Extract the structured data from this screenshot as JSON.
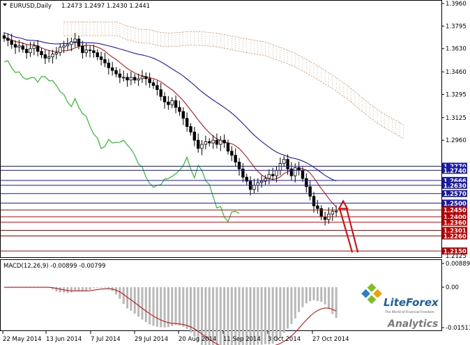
{
  "header": {
    "symbol_timeframe": "EURUSD,Daily",
    "ohlc": "1.2473 1.2497 1.2430 1.2441"
  },
  "price_axis": {
    "ticks": [
      "1.3960",
      "1.3795",
      "1.3630",
      "1.3460",
      "1.3295",
      "1.3125",
      "1.2960"
    ],
    "low_tick": "1.2125"
  },
  "levels": [
    {
      "label": "1.2770",
      "color": "#1a1aa8",
      "kind": "resistance"
    },
    {
      "label": "1.2740",
      "color": "#1a1aa8",
      "kind": "resistance"
    },
    {
      "label": "1.2666",
      "color": "#1a1aa8",
      "kind": "resistance"
    },
    {
      "label": "1.2630",
      "color": "#1a1aa8",
      "kind": "resistance"
    },
    {
      "label": "1.2570",
      "color": "#1a1aa8",
      "kind": "resistance"
    },
    {
      "label": "1.2500",
      "color": "#1a1aa8",
      "kind": "resistance"
    },
    {
      "label": "1.2450",
      "color": "#c00000",
      "kind": "support"
    },
    {
      "label": "1.2400",
      "color": "#c00000",
      "kind": "support"
    },
    {
      "label": "1.2360",
      "color": "#c00000",
      "kind": "support"
    },
    {
      "label": "1.2301",
      "color": "#c00000",
      "kind": "support"
    },
    {
      "label": "1.2260",
      "color": "#c00000",
      "kind": "support"
    },
    {
      "label": "1.2150",
      "color": "#c00000",
      "kind": "support"
    }
  ],
  "macd": {
    "label": "MACD(12,26,9) -0.00899 -0.00799",
    "ticks": [
      "0.00889",
      "0.00",
      "-0.01511"
    ]
  },
  "time_axis": {
    "labels": [
      "22 May 2014",
      "13 Jun 2014",
      "7 Jul 2014",
      "29 Jul 2014",
      "20 Aug 2014",
      "11 Sep 2014",
      "3 Oct 2014",
      "27 Oct 2014"
    ]
  },
  "logo": {
    "brand": "LiteForex",
    "tagline": "The World of Financial Freedom",
    "product": "Analytics"
  },
  "colors": {
    "tenkan": "#cc0000",
    "kijun": "#0000cc",
    "chikou": "#00bb00",
    "cloud": "#e08a5a",
    "forecast_arrow": "#e00000",
    "macd_hist": "#b8b8b8",
    "macd_signal": "#cc0000",
    "resistance": "#1a1aa8",
    "support": "#c00000"
  },
  "chart_data": {
    "type": "candlestick",
    "symbol": "EURUSD",
    "timeframe": "Daily",
    "ylim": [
      1.2125,
      1.396
    ],
    "time_range": [
      "22 May 2014",
      "27 Oct 2014"
    ],
    "closes": [
      1.3705,
      1.369,
      1.366,
      1.364,
      1.365,
      1.3625,
      1.36,
      1.363,
      1.365,
      1.361,
      1.3585,
      1.356,
      1.357,
      1.359,
      1.36,
      1.364,
      1.365,
      1.366,
      1.368,
      1.37,
      1.365,
      1.36,
      1.362,
      1.3615,
      1.36,
      1.357,
      1.355,
      1.3525,
      1.349,
      1.347,
      1.3445,
      1.342,
      1.342,
      1.34,
      1.342,
      1.34,
      1.341,
      1.3425,
      1.341,
      1.338,
      1.336,
      1.333,
      1.328,
      1.324,
      1.322,
      1.325,
      1.32,
      1.317,
      1.312,
      1.306,
      1.302,
      1.296,
      1.29,
      1.293,
      1.295,
      1.294,
      1.296,
      1.293,
      1.296,
      1.294,
      1.288,
      1.285,
      1.28,
      1.275,
      1.269,
      1.266,
      1.26,
      1.263,
      1.265,
      1.266,
      1.268,
      1.271,
      1.27,
      1.274,
      1.279,
      1.282,
      1.275,
      1.27,
      1.276,
      1.274,
      1.268,
      1.262,
      1.255,
      1.248,
      1.246,
      1.24,
      1.238,
      1.242,
      1.244,
      1.2441
    ],
    "indicators": [
      "Ichimoku Kinko Hyo",
      "MACD(12,26,9)"
    ],
    "macd_values": {
      "main": -0.00899,
      "signal": -0.00799
    },
    "macd_ylim": [
      -0.01511,
      0.00889
    ]
  }
}
